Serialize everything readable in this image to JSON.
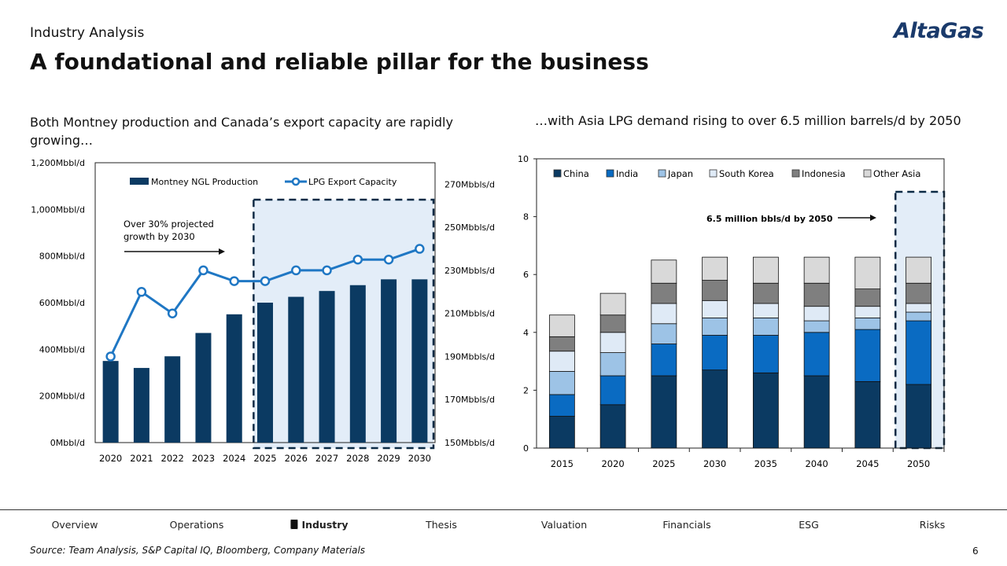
{
  "header": {
    "section": "Industry Analysis",
    "title": "A foundational and reliable pillar for the business",
    "logo": "AltaGas"
  },
  "left": {
    "subtitle": "Both Montney production and Canada’s export capacity are rapidly growing…"
  },
  "right": {
    "subtitle": "…with Asia LPG demand rising to over 6.5 million barrels/d by 2050"
  },
  "nav": {
    "items": [
      "Overview",
      "Operations",
      "Industry",
      "Thesis",
      "Valuation",
      "Financials",
      "ESG",
      "Risks"
    ],
    "active": "Industry",
    "active_icon": "oil-barrel-icon"
  },
  "footer": {
    "source": "Source: Team Analysis, S&P Capital IQ, Bloomberg, Company Materials",
    "page": "6"
  },
  "chart_data": [
    {
      "type": "bar+line",
      "categories": [
        "2020",
        "2021",
        "2022",
        "2023",
        "2024",
        "2025",
        "2026",
        "2027",
        "2028",
        "2029",
        "2030"
      ],
      "series": [
        {
          "name": "Montney NGL Production",
          "type": "bar",
          "axis": "left",
          "color": "#0b3a62",
          "values": [
            350,
            320,
            370,
            470,
            550,
            600,
            625,
            650,
            675,
            700,
            700
          ]
        },
        {
          "name": "LPG Export Capacity",
          "type": "line",
          "axis": "right",
          "color": "#1f77c4",
          "values": [
            190,
            220,
            210,
            230,
            225,
            225,
            230,
            230,
            235,
            235,
            240
          ]
        }
      ],
      "left_axis": {
        "ylim": [
          0,
          1200
        ],
        "ticks": [
          "0Mbbl/d",
          "200Mbbl/d",
          "400Mbbl/d",
          "600Mbbl/d",
          "800Mbbl/d",
          "1,000Mbbl/d",
          "1,200Mbbl/d"
        ]
      },
      "right_axis": {
        "ylim": [
          150,
          280
        ],
        "ticks": [
          "150Mbbls/d",
          "170Mbbls/d",
          "190Mbbls/d",
          "210Mbbls/d",
          "230Mbbls/d",
          "250Mbbls/d",
          "270Mbbls/d"
        ]
      },
      "annotation": "Over 30% projected growth by 2030",
      "highlight_range": [
        "2025",
        "2030"
      ],
      "legend": "top"
    },
    {
      "type": "stacked-bar",
      "categories": [
        "2015",
        "2020",
        "2025",
        "2030",
        "2035",
        "2040",
        "2045",
        "2050"
      ],
      "series": [
        {
          "name": "China",
          "color": "#0b3a62",
          "values": [
            1.1,
            1.5,
            2.5,
            2.7,
            2.6,
            2.5,
            2.3,
            2.2
          ]
        },
        {
          "name": "India",
          "color": "#0a6bc2",
          "values": [
            0.75,
            1.0,
            1.1,
            1.2,
            1.3,
            1.5,
            1.8,
            2.2
          ]
        },
        {
          "name": "Japan",
          "color": "#9dc3e6",
          "values": [
            0.8,
            0.8,
            0.7,
            0.6,
            0.6,
            0.4,
            0.4,
            0.3
          ]
        },
        {
          "name": "South Korea",
          "color": "#dfeaf6",
          "values": [
            0.7,
            0.7,
            0.7,
            0.6,
            0.5,
            0.5,
            0.4,
            0.3
          ]
        },
        {
          "name": "Indonesia",
          "color": "#7f7f7f",
          "values": [
            0.5,
            0.6,
            0.7,
            0.7,
            0.7,
            0.8,
            0.6,
            0.7
          ]
        },
        {
          "name": "Other Asia",
          "color": "#d9d9d9",
          "values": [
            0.75,
            0.75,
            0.8,
            0.8,
            0.9,
            0.9,
            1.1,
            0.9
          ]
        }
      ],
      "ylim": [
        0,
        10
      ],
      "yticks": [
        "0",
        "2",
        "4",
        "6",
        "8",
        "10"
      ],
      "annotation": "6.5 million bbls/d by 2050",
      "highlight_range": [
        "2050",
        "2050"
      ],
      "legend": "top"
    }
  ]
}
